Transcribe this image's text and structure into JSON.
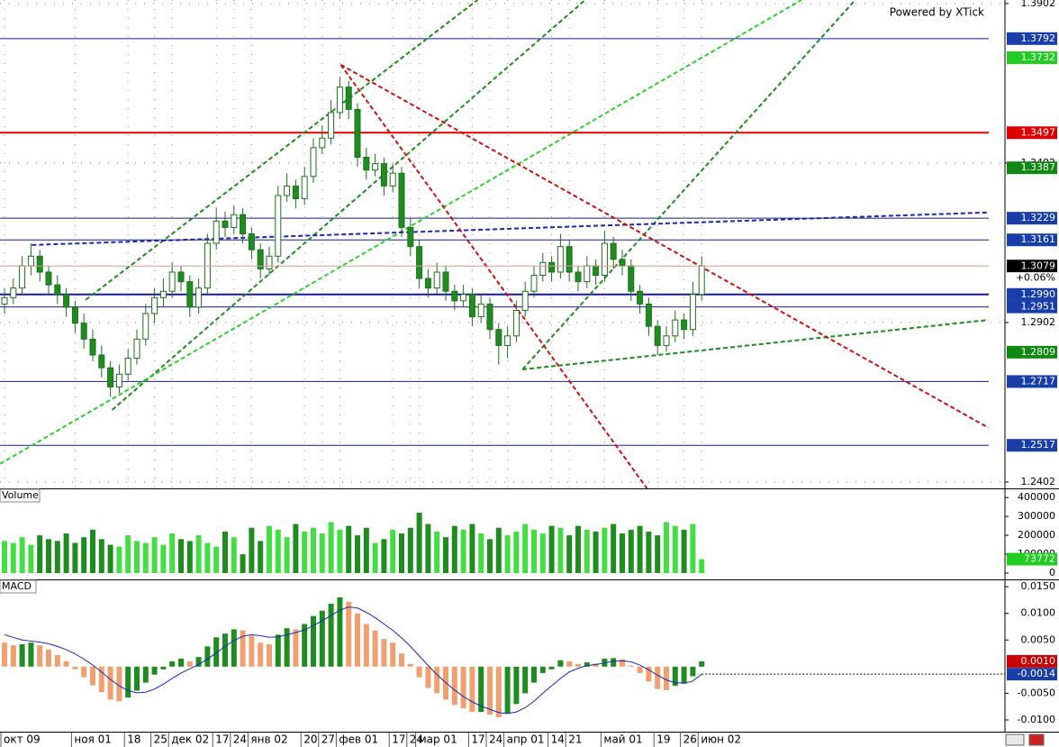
{
  "chart_data": [
    {
      "type": "candlestick",
      "watermark": "Powered by XTick",
      "categories": [
        "окт 09",
        null,
        null,
        null,
        null,
        null,
        null,
        null,
        "ноя 01",
        null,
        null,
        null,
        null,
        null,
        "18",
        null,
        null,
        "25",
        null,
        "дек 02",
        null,
        null,
        null,
        null,
        "17",
        null,
        "24",
        null,
        "янв 02",
        null,
        null,
        null,
        null,
        null,
        "20",
        null,
        "27",
        null,
        "фев 01",
        null,
        null,
        null,
        null,
        null,
        "17",
        null,
        "24",
        "мар 01",
        null,
        null,
        null,
        null,
        null,
        "17",
        null,
        "24",
        null,
        "апр 01",
        null,
        null,
        null,
        null,
        "14",
        null,
        "21",
        null,
        null,
        null,
        "май 01",
        null,
        null,
        null,
        null,
        null,
        "19",
        null,
        null,
        "26",
        null,
        "июн 02"
      ],
      "ohlc": [
        [
          1.296,
          1.301,
          1.293,
          1.298
        ],
        [
          1.298,
          1.304,
          1.296,
          1.301
        ],
        [
          1.301,
          1.311,
          1.299,
          1.308
        ],
        [
          1.308,
          1.315,
          1.305,
          1.311
        ],
        [
          1.311,
          1.313,
          1.303,
          1.306
        ],
        [
          1.306,
          1.308,
          1.299,
          1.302
        ],
        [
          1.302,
          1.305,
          1.296,
          1.299
        ],
        [
          1.299,
          1.301,
          1.292,
          1.295
        ],
        [
          1.295,
          1.297,
          1.287,
          1.29
        ],
        [
          1.29,
          1.293,
          1.282,
          1.285
        ],
        [
          1.285,
          1.288,
          1.278,
          1.28
        ],
        [
          1.28,
          1.283,
          1.273,
          1.276
        ],
        [
          1.276,
          1.278,
          1.267,
          1.27
        ],
        [
          1.27,
          1.277,
          1.268,
          1.274
        ],
        [
          1.274,
          1.282,
          1.272,
          1.279
        ],
        [
          1.279,
          1.288,
          1.277,
          1.285
        ],
        [
          1.285,
          1.296,
          1.283,
          1.293
        ],
        [
          1.293,
          1.301,
          1.29,
          1.298
        ],
        [
          1.298,
          1.304,
          1.295,
          1.3
        ],
        [
          1.3,
          1.309,
          1.298,
          1.306
        ],
        [
          1.306,
          1.308,
          1.3,
          1.303
        ],
        [
          1.303,
          1.305,
          1.292,
          1.295
        ],
        [
          1.295,
          1.304,
          1.293,
          1.301
        ],
        [
          1.301,
          1.318,
          1.299,
          1.315
        ],
        [
          1.315,
          1.326,
          1.313,
          1.322
        ],
        [
          1.322,
          1.325,
          1.317,
          1.32
        ],
        [
          1.32,
          1.327,
          1.318,
          1.324
        ],
        [
          1.324,
          1.326,
          1.315,
          1.318
        ],
        [
          1.318,
          1.32,
          1.31,
          1.313
        ],
        [
          1.313,
          1.315,
          1.304,
          1.307
        ],
        [
          1.307,
          1.314,
          1.305,
          1.311
        ],
        [
          1.311,
          1.333,
          1.309,
          1.33
        ],
        [
          1.33,
          1.337,
          1.328,
          1.333
        ],
        [
          1.333,
          1.335,
          1.326,
          1.329
        ],
        [
          1.329,
          1.339,
          1.327,
          1.336
        ],
        [
          1.336,
          1.348,
          1.334,
          1.345
        ],
        [
          1.345,
          1.352,
          1.343,
          1.348
        ],
        [
          1.348,
          1.36,
          1.346,
          1.356
        ],
        [
          1.356,
          1.3672,
          1.354,
          1.364
        ],
        [
          1.364,
          1.366,
          1.354,
          1.357
        ],
        [
          1.357,
          1.359,
          1.339,
          1.342
        ],
        [
          1.342,
          1.345,
          1.335,
          1.338
        ],
        [
          1.338,
          1.343,
          1.336,
          1.34
        ],
        [
          1.34,
          1.342,
          1.33,
          1.333
        ],
        [
          1.333,
          1.34,
          1.331,
          1.337
        ],
        [
          1.337,
          1.339,
          1.317,
          1.32
        ],
        [
          1.32,
          1.323,
          1.311,
          1.314
        ],
        [
          1.314,
          1.316,
          1.301,
          1.304
        ],
        [
          1.304,
          1.307,
          1.298,
          1.301
        ],
        [
          1.301,
          1.309,
          1.299,
          1.306
        ],
        [
          1.306,
          1.308,
          1.297,
          1.3
        ],
        [
          1.3,
          1.302,
          1.294,
          1.297
        ],
        [
          1.297,
          1.302,
          1.295,
          1.299
        ],
        [
          1.299,
          1.301,
          1.289,
          1.292
        ],
        [
          1.292,
          1.299,
          1.29,
          1.296
        ],
        [
          1.296,
          1.298,
          1.285,
          1.288
        ],
        [
          1.288,
          1.29,
          1.277,
          1.283
        ],
        [
          1.283,
          1.289,
          1.279,
          1.286
        ],
        [
          1.286,
          1.297,
          1.284,
          1.294
        ],
        [
          1.294,
          1.303,
          1.292,
          1.3
        ],
        [
          1.3,
          1.308,
          1.298,
          1.305
        ],
        [
          1.305,
          1.312,
          1.303,
          1.309
        ],
        [
          1.309,
          1.311,
          1.303,
          1.306
        ],
        [
          1.306,
          1.318,
          1.304,
          1.314
        ],
        [
          1.314,
          1.316,
          1.303,
          1.306
        ],
        [
          1.306,
          1.308,
          1.3,
          1.303
        ],
        [
          1.303,
          1.311,
          1.301,
          1.308
        ],
        [
          1.308,
          1.31,
          1.302,
          1.305
        ],
        [
          1.305,
          1.319,
          1.303,
          1.315
        ],
        [
          1.315,
          1.317,
          1.307,
          1.31
        ],
        [
          1.31,
          1.313,
          1.305,
          1.308
        ],
        [
          1.308,
          1.31,
          1.297,
          1.3
        ],
        [
          1.3,
          1.302,
          1.293,
          1.296
        ],
        [
          1.296,
          1.298,
          1.286,
          1.289
        ],
        [
          1.289,
          1.291,
          1.28,
          1.283
        ],
        [
          1.283,
          1.289,
          1.281,
          1.286
        ],
        [
          1.286,
          1.294,
          1.284,
          1.291
        ],
        [
          1.291,
          1.293,
          1.285,
          1.288
        ],
        [
          1.288,
          1.303,
          1.286,
          1.299
        ],
        [
          1.299,
          1.311,
          1.297,
          1.3079
        ]
      ],
      "up_color": "#ffffff",
      "down_color": "#1e8c1e",
      "wick_color": "#1e6e1e",
      "ylim": [
        1.2382,
        1.3913
      ],
      "yticks": [
        1.2402,
        1.2902,
        1.3402,
        1.3902
      ],
      "grid": true,
      "change_label": "+0.06%",
      "current_color": "#000000",
      "levels": [
        {
          "value": 1.3792,
          "label": "1.3792",
          "line": "#1a1a8c",
          "box": "#1a3ea8"
        },
        {
          "value": 1.3732,
          "label": "1.3732",
          "box": "#22cc22"
        },
        {
          "value": 1.3497,
          "label": "1.3497",
          "line": "#dd0000",
          "box": "#dd0000",
          "style": "thick"
        },
        {
          "value": 1.3387,
          "label": "1.3387",
          "box": "#118811"
        },
        {
          "value": 1.3229,
          "label": "1.3229",
          "line": "#1a1a8c",
          "box": "#1a3ea8"
        },
        {
          "value": 1.3161,
          "label": "1.3161",
          "line": "#1a1a8c",
          "box": "#1a3ea8"
        },
        {
          "value": 1.299,
          "label": "1.2990",
          "line": "#1a1a8c",
          "box": "#1a3ea8",
          "style": "thick"
        },
        {
          "value": 1.2951,
          "label": "1.2951",
          "line": "#1a1a8c",
          "box": "#1a3ea8"
        },
        {
          "value": 1.2809,
          "label": "1.2809",
          "box": "#118811"
        },
        {
          "value": 1.2717,
          "label": "1.2717",
          "line": "#1a1a8c",
          "box": "#1a3ea8"
        },
        {
          "value": 1.2517,
          "label": "1.2517",
          "line": "#1a1a8c",
          "box": "#1a3ea8"
        }
      ],
      "trendlines": [
        {
          "color": "#1f8a1f",
          "points": [
            [
              9.2,
              1.2973
            ],
            [
              53.6,
              1.3913
            ]
          ]
        },
        {
          "color": "#1f8a1f",
          "points": [
            [
              12.2,
              1.2628
            ],
            [
              65.8,
              1.3913
            ]
          ]
        },
        {
          "color": "#33cc33",
          "points": [
            [
              -0.5,
              1.2459
            ],
            [
              90.3,
              1.3913
            ]
          ]
        },
        {
          "color": "#1f8a1f",
          "points": [
            [
              58.7,
              1.2755
            ],
            [
              96.4,
              1.3913
            ]
          ]
        },
        {
          "color": "#1f8a1f",
          "points": [
            [
              58.7,
              1.2755
            ],
            [
              111.5,
              1.291
            ]
          ]
        },
        {
          "color": "#1a2aaa",
          "points": [
            [
              3.1,
              1.3145
            ],
            [
              111.5,
              1.3247
            ]
          ]
        },
        {
          "color": "#cc1111",
          "points": [
            [
              38.1,
              1.371
            ],
            [
              111.5,
              1.2572
            ]
          ]
        },
        {
          "color": "#cc1111",
          "points": [
            [
              38.1,
              1.371
            ],
            [
              72.8,
              1.2382
            ]
          ]
        }
      ]
    },
    {
      "type": "volume",
      "title": "Volume",
      "values": [
        170000,
        160000,
        190000,
        150000,
        200000,
        180000,
        170000,
        210000,
        160000,
        190000,
        230000,
        180000,
        150000,
        140000,
        200000,
        170000,
        160000,
        190000,
        150000,
        210000,
        180000,
        170000,
        200000,
        160000,
        140000,
        220000,
        190000,
        100000,
        240000,
        170000,
        250000,
        230000,
        190000,
        260000,
        220000,
        240000,
        210000,
        270000,
        230000,
        250000,
        200000,
        240000,
        160000,
        180000,
        230000,
        210000,
        240000,
        320000,
        260000,
        220000,
        190000,
        250000,
        230000,
        260000,
        210000,
        180000,
        240000,
        200000,
        220000,
        260000,
        230000,
        210000,
        250000,
        240000,
        200000,
        250000,
        230000,
        220000,
        240000,
        260000,
        210000,
        230000,
        250000,
        220000,
        200000,
        270000,
        250000,
        230000,
        260000,
        73772
      ],
      "up_color": "#44dd44",
      "down_color": "#1e8c1e",
      "last_box": "#22cc22",
      "ylim": [
        0,
        420000
      ],
      "yticks": [
        0,
        100000,
        200000,
        300000,
        400000
      ]
    },
    {
      "type": "macd",
      "title": "MACD",
      "histogram": [
        0.0045,
        0.004,
        0.0042,
        0.0045,
        0.004,
        0.0032,
        0.0022,
        0.001,
        -0.0005,
        -0.002,
        -0.0035,
        -0.0048,
        -0.0062,
        -0.0065,
        -0.0058,
        -0.0045,
        -0.003,
        -0.0015,
        -0.0005,
        0.001,
        0.0015,
        0.001,
        0.0018,
        0.0038,
        0.0055,
        0.0062,
        0.007,
        0.0068,
        0.0058,
        0.0045,
        0.0042,
        0.006,
        0.0072,
        0.007,
        0.008,
        0.0095,
        0.0105,
        0.0118,
        0.013,
        0.0122,
        0.01,
        0.008,
        0.0068,
        0.0052,
        0.0045,
        0.0025,
        0.0005,
        -0.002,
        -0.004,
        -0.005,
        -0.0062,
        -0.0072,
        -0.0078,
        -0.0085,
        -0.0085,
        -0.009,
        -0.0095,
        -0.0088,
        -0.007,
        -0.005,
        -0.003,
        -0.0012,
        -0.0005,
        0.0012,
        0.001,
        0.0005,
        0.0008,
        0.0006,
        0.0015,
        0.0016,
        0.0014,
        0.0002,
        -0.0012,
        -0.0028,
        -0.0042,
        -0.0044,
        -0.0036,
        -0.0032,
        -0.0018,
        0.001
      ],
      "histogram_label": "0.0010",
      "signal": [
        0.006,
        0.0055,
        0.005,
        0.0048,
        0.0046,
        0.0043,
        0.0038,
        0.0032,
        0.0024,
        0.0014,
        0.0003,
        -0.001,
        -0.0024,
        -0.0036,
        -0.0045,
        -0.0049,
        -0.0048,
        -0.0042,
        -0.0033,
        -0.0022,
        -0.0012,
        -0.0004,
        0.0004,
        0.0014,
        0.0026,
        0.0038,
        0.0049,
        0.0057,
        0.006,
        0.0058,
        0.0055,
        0.0056,
        0.006,
        0.0064,
        0.0069,
        0.0077,
        0.0086,
        0.0096,
        0.0106,
        0.0112,
        0.011,
        0.0102,
        0.0092,
        0.008,
        0.0068,
        0.0054,
        0.0038,
        0.002,
        0.0002,
        -0.0015,
        -0.003,
        -0.0044,
        -0.0056,
        -0.0066,
        -0.0074,
        -0.008,
        -0.0086,
        -0.0088,
        -0.0085,
        -0.0077,
        -0.0065,
        -0.005,
        -0.0036,
        -0.0022,
        -0.001,
        -0.0003,
        0.0002,
        0.0004,
        0.0007,
        0.001,
        0.0011,
        0.0009,
        0.0003,
        -0.0006,
        -0.0016,
        -0.0025,
        -0.003,
        -0.0031,
        -0.0027,
        -0.0014
      ],
      "signal_label": "-0.0014",
      "rise_color": "#1e8c1e",
      "fall_color": "#f0a070",
      "signal_color": "#1a2aaa",
      "histogram_box": "#cc0000",
      "signal_box": "#1a3ea8",
      "ylim": [
        -0.0122,
        0.0162
      ],
      "yticks": [
        {
          "value": -0.01,
          "label": "-0.0100"
        },
        {
          "value": -0.005,
          "label": "-0.0050"
        },
        {
          "value": 0.005,
          "label": "0.0050"
        },
        {
          "value": 0.01,
          "label": "0.0100"
        },
        {
          "value": 0.015,
          "label": "0.0150"
        }
      ]
    }
  ]
}
